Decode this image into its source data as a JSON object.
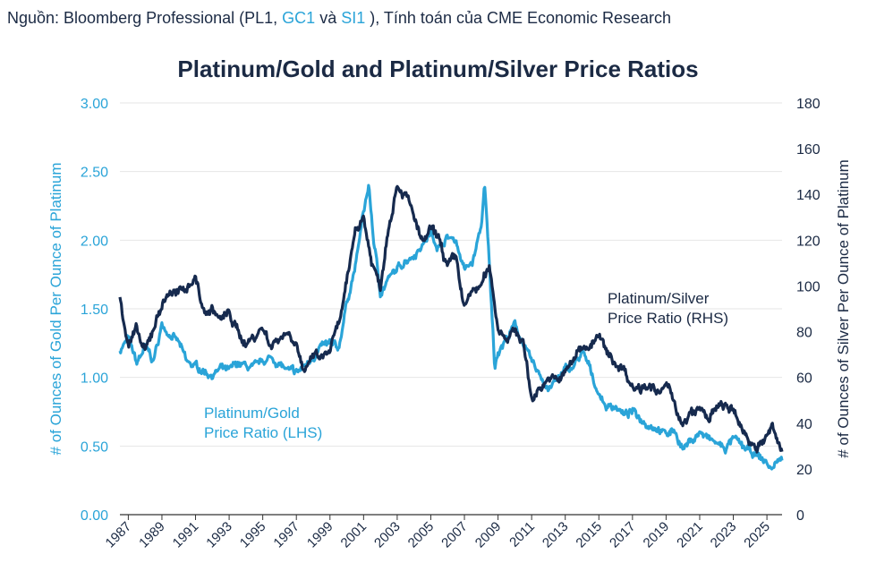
{
  "source": {
    "prefix": "Nguồn: Bloomberg Professional (PL1, ",
    "gc1": "GC1",
    "va": " và ",
    "si1": "SI1",
    "suffix": " ), Tính toán của CME Economic Research"
  },
  "chart_data": {
    "type": "line",
    "title": "Platinum/Gold and Platinum/Silver Price Ratios",
    "ylabel_left": "# of Ounces of Gold Per Ounce of Platinum",
    "ylabel_right": "# of Ounces of Silver Per Ounce of Platinum",
    "ylim_left": [
      0,
      3.0
    ],
    "ylim_right": [
      0,
      180
    ],
    "yticks_left": [
      "3.00",
      "2.50",
      "2.00",
      "1.50",
      "1.00",
      "0.50",
      "0.00"
    ],
    "yticks_right": [
      "180",
      "160",
      "140",
      "120",
      "100",
      "80",
      "60",
      "40",
      "20",
      "0"
    ],
    "xlim": [
      1986.5,
      2025.9
    ],
    "xticks": [
      "1987",
      "1989",
      "1991",
      "1993",
      "1995",
      "1997",
      "1999",
      "2001",
      "2003",
      "2005",
      "2007",
      "2009",
      "2011",
      "2013",
      "2015",
      "2017",
      "2019",
      "2021",
      "2023",
      "2025"
    ],
    "colors": {
      "gold_ratio": "#2aa4d8",
      "silver_ratio": "#162a4e",
      "text": "#1b2a44",
      "axis_left": "#2aa4d8"
    },
    "series": [
      {
        "name": "Platinum/Gold Price Ratio (LHS)",
        "label_lines": [
          "Platinum/Gold",
          "Price Ratio (LHS)"
        ],
        "axis": "left",
        "x": [
          1986.5,
          1987.0,
          1987.5,
          1988.0,
          1988.5,
          1989.0,
          1989.5,
          1990.0,
          1990.5,
          1991.0,
          1991.5,
          1992.0,
          1992.5,
          1993.0,
          1993.5,
          1994.0,
          1994.5,
          1995.0,
          1995.5,
          1996.0,
          1996.5,
          1997.0,
          1997.5,
          1998.0,
          1998.5,
          1999.0,
          1999.5,
          2000.0,
          2000.5,
          2001.0,
          2001.3,
          2001.6,
          2002.0,
          2002.5,
          2003.0,
          2003.5,
          2004.0,
          2004.5,
          2005.0,
          2005.5,
          2006.0,
          2006.5,
          2007.0,
          2007.5,
          2008.0,
          2008.2,
          2008.5,
          2008.8,
          2009.0,
          2009.5,
          2010.0,
          2010.5,
          2011.0,
          2011.5,
          2012.0,
          2012.5,
          2013.0,
          2013.5,
          2014.0,
          2014.5,
          2015.0,
          2015.5,
          2016.0,
          2016.5,
          2017.0,
          2017.5,
          2018.0,
          2018.5,
          2019.0,
          2019.5,
          2020.0,
          2020.5,
          2021.0,
          2021.5,
          2022.0,
          2022.5,
          2023.0,
          2023.5,
          2024.0,
          2024.5,
          2025.0,
          2025.3,
          2025.6,
          2025.9
        ],
        "values": [
          1.2,
          1.28,
          1.1,
          1.22,
          1.12,
          1.38,
          1.32,
          1.25,
          1.1,
          1.08,
          1.05,
          1.02,
          1.06,
          1.04,
          1.1,
          1.08,
          1.06,
          1.12,
          1.14,
          1.1,
          1.04,
          1.03,
          1.08,
          1.16,
          1.22,
          1.24,
          1.2,
          1.55,
          1.8,
          2.2,
          2.4,
          2.0,
          1.62,
          1.72,
          1.78,
          1.86,
          1.9,
          1.97,
          2.05,
          1.95,
          2.02,
          2.0,
          1.78,
          1.84,
          2.1,
          2.4,
          1.78,
          1.08,
          1.2,
          1.28,
          1.38,
          1.25,
          1.1,
          1.02,
          0.92,
          0.98,
          1.05,
          1.08,
          1.18,
          1.05,
          0.88,
          0.78,
          0.8,
          0.72,
          0.75,
          0.7,
          0.66,
          0.64,
          0.58,
          0.62,
          0.48,
          0.54,
          0.6,
          0.55,
          0.52,
          0.48,
          0.55,
          0.5,
          0.45,
          0.42,
          0.38,
          0.32,
          0.4,
          0.4
        ]
      },
      {
        "name": "Platinum/Silver Price Ratio (RHS)",
        "label_lines": [
          "Platinum/Silver",
          "Price Ratio (RHS)"
        ],
        "axis": "right",
        "x": [
          1986.5,
          1987.0,
          1987.5,
          1988.0,
          1988.5,
          1989.0,
          1989.5,
          1990.0,
          1990.5,
          1991.0,
          1991.5,
          1992.0,
          1992.5,
          1993.0,
          1993.5,
          1994.0,
          1994.5,
          1995.0,
          1995.5,
          1996.0,
          1996.5,
          1997.0,
          1997.5,
          1998.0,
          1998.5,
          1999.0,
          1999.5,
          2000.0,
          2000.5,
          2001.0,
          2001.5,
          2002.0,
          2002.5,
          2003.0,
          2003.5,
          2004.0,
          2004.5,
          2005.0,
          2005.5,
          2006.0,
          2006.5,
          2007.0,
          2007.5,
          2008.0,
          2008.5,
          2009.0,
          2009.5,
          2010.0,
          2010.5,
          2011.0,
          2011.5,
          2012.0,
          2012.5,
          2013.0,
          2013.5,
          2014.0,
          2014.5,
          2015.0,
          2015.5,
          2016.0,
          2016.5,
          2017.0,
          2017.5,
          2018.0,
          2018.5,
          2019.0,
          2019.5,
          2020.0,
          2020.5,
          2021.0,
          2021.5,
          2022.0,
          2022.5,
          2023.0,
          2023.5,
          2024.0,
          2024.5,
          2025.0,
          2025.3,
          2025.6,
          2025.9
        ],
        "values": [
          95,
          75,
          80,
          70,
          82,
          92,
          98,
          96,
          100,
          104,
          88,
          90,
          85,
          88,
          80,
          75,
          78,
          82,
          74,
          78,
          80,
          76,
          60,
          70,
          68,
          72,
          82,
          100,
          125,
          130,
          110,
          100,
          128,
          145,
          140,
          130,
          118,
          124,
          120,
          108,
          112,
          90,
          98,
          100,
          108,
          82,
          78,
          80,
          76,
          50,
          56,
          60,
          58,
          62,
          68,
          74,
          74,
          78,
          70,
          66,
          64,
          56,
          56,
          58,
          52,
          56,
          50,
          38,
          44,
          46,
          42,
          46,
          48,
          44,
          38,
          32,
          30,
          34,
          38,
          32,
          28
        ]
      }
    ]
  }
}
